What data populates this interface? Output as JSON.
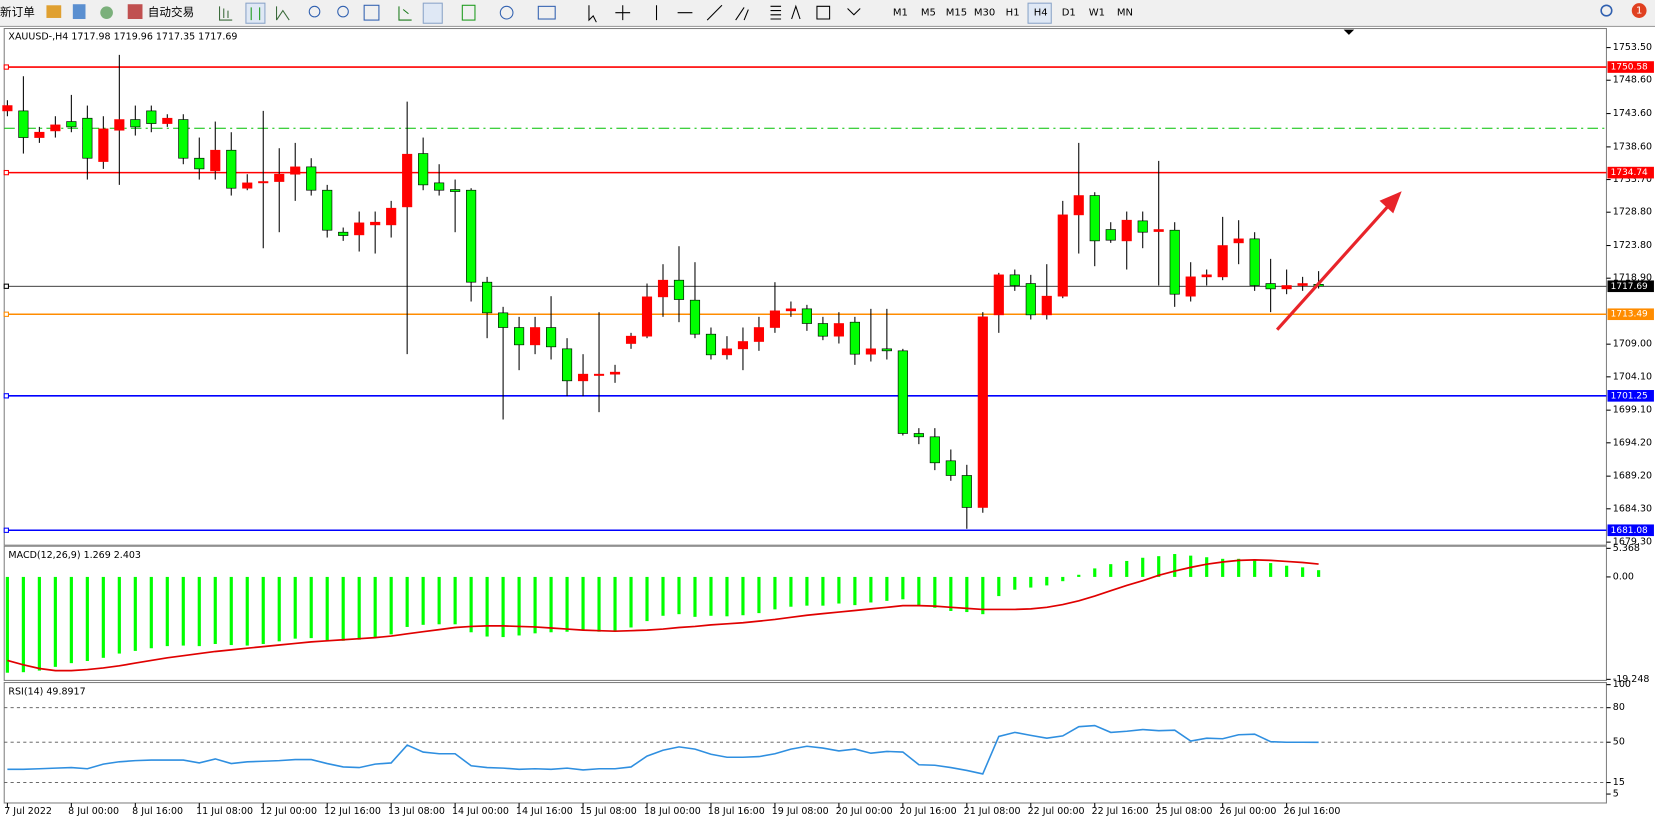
{
  "toolbar": {
    "new_order": "新订单",
    "auto_trading": "自动交易",
    "timeframes": [
      "M1",
      "M5",
      "M15",
      "M30",
      "H1",
      "H4",
      "D1",
      "W1",
      "MN"
    ],
    "notifications": "1"
  },
  "chart_data": [
    {
      "type": "candlestick",
      "title": "XAUUSD-,H4 1717.98 1719.96 1717.35 1717.69",
      "up_color": "#ff0000",
      "down_color": "#00ff00",
      "wick_color": "#000000",
      "categories": [
        "7 Jul 2022",
        null,
        null,
        null,
        "8 Jul 00:00",
        null,
        null,
        null,
        "8 Jul 16:00",
        null,
        null,
        null,
        "11 Jul 08:00",
        null,
        null,
        null,
        "12 Jul 00:00",
        null,
        null,
        null,
        "12 Jul 16:00",
        null,
        null,
        null,
        "13 Jul 08:00",
        null,
        null,
        null,
        "14 Jul 00:00",
        null,
        null,
        null,
        "14 Jul 16:00",
        null,
        null,
        null,
        "15 Jul 08:00",
        null,
        null,
        null,
        "18 Jul 00:00",
        null,
        null,
        null,
        "18 Jul 16:00",
        null,
        null,
        null,
        "19 Jul 08:00",
        null,
        null,
        null,
        "20 Jul 00:00",
        null,
        null,
        null,
        "20 Jul 16:00",
        null,
        null,
        null,
        "21 Jul 08:00",
        null,
        null,
        null,
        "22 Jul 00:00",
        null,
        null,
        null,
        "22 Jul 16:00",
        null,
        null,
        null,
        "25 Jul 08:00",
        null,
        null,
        null,
        "26 Jul 00:00",
        null,
        null,
        null,
        "26 Jul 16:00",
        null,
        null
      ],
      "open": [
        1744.0,
        1744.0,
        1740.0,
        1741.0,
        1742.4,
        1742.9,
        1736.4,
        1741.1,
        1742.7,
        1744.0,
        1742.1,
        1742.7,
        1736.9,
        1735.0,
        1738.1,
        1732.4,
        1733.2,
        1733.4,
        1734.5,
        1735.6,
        1732.1,
        1725.8,
        1725.4,
        1726.9,
        1726.9,
        1729.6,
        1737.6,
        1733.2,
        1732.2,
        1732.1,
        1718.3,
        1713.7,
        1711.5,
        1708.9,
        1711.5,
        1708.3,
        1703.5,
        1704.3,
        1704.5,
        1709.1,
        1710.2,
        1716.1,
        1718.6,
        1715.6,
        1710.5,
        1707.4,
        1708.3,
        1709.4,
        1711.5,
        1714.0,
        1714.3,
        1712.1,
        1710.2,
        1712.3,
        1707.5,
        1708.3,
        1708.0,
        1695.6,
        1695.1,
        1691.5,
        1689.3,
        1684.5,
        1713.4,
        1719.4,
        1718.1,
        1713.4,
        1716.2,
        1728.4,
        1731.3,
        1726.2,
        1724.5,
        1727.5,
        1725.9,
        1726.1,
        1716.2,
        1719.1,
        1719.1,
        1724.2,
        1724.8,
        1718.1,
        1717.3,
        1717.8,
        1717.98
      ],
      "high": [
        1745.6,
        1749.2,
        1741.6,
        1743.2,
        1746.4,
        1744.8,
        1743.2,
        1752.4,
        1744.8,
        1744.8,
        1743.5,
        1743.5,
        1740.0,
        1742.4,
        1740.8,
        1734.5,
        1744.0,
        1738.4,
        1739.2,
        1736.9,
        1732.9,
        1726.5,
        1728.9,
        1728.9,
        1730.5,
        1745.4,
        1740.0,
        1736.0,
        1733.7,
        1732.4,
        1719.1,
        1714.6,
        1713.1,
        1713.1,
        1716.2,
        1709.9,
        1707.5,
        1713.8,
        1705.9,
        1710.7,
        1718.1,
        1721.0,
        1723.7,
        1721.3,
        1711.5,
        1710.2,
        1711.5,
        1713.1,
        1718.3,
        1715.4,
        1714.9,
        1713.1,
        1713.8,
        1713.1,
        1714.3,
        1714.3,
        1708.3,
        1696.4,
        1696.4,
        1693.2,
        1690.9,
        1713.8,
        1719.7,
        1720.2,
        1719.4,
        1721.0,
        1730.5,
        1739.2,
        1731.8,
        1727.3,
        1728.9,
        1728.9,
        1736.5,
        1727.3,
        1721.3,
        1720.2,
        1728.1,
        1727.6,
        1725.8,
        1721.8,
        1720.2,
        1719.1,
        1719.96
      ],
      "low": [
        1743.2,
        1737.6,
        1739.2,
        1740.0,
        1740.8,
        1733.7,
        1735.3,
        1732.9,
        1740.3,
        1740.8,
        1741.6,
        1736.0,
        1733.7,
        1733.7,
        1731.3,
        1732.1,
        1723.4,
        1725.8,
        1730.5,
        1731.3,
        1725.0,
        1724.5,
        1722.9,
        1722.6,
        1725.0,
        1707.5,
        1732.1,
        1731.3,
        1725.8,
        1715.4,
        1709.9,
        1697.7,
        1705.1,
        1707.5,
        1706.7,
        1701.2,
        1701.2,
        1698.8,
        1703.2,
        1708.3,
        1709.9,
        1713.1,
        1712.3,
        1709.9,
        1706.7,
        1706.7,
        1705.1,
        1708.0,
        1710.7,
        1713.1,
        1711.0,
        1709.6,
        1709.1,
        1705.9,
        1706.4,
        1706.7,
        1695.3,
        1694.0,
        1690.1,
        1688.5,
        1681.3,
        1683.7,
        1710.7,
        1717.0,
        1712.7,
        1712.7,
        1715.9,
        1722.6,
        1720.7,
        1724.2,
        1720.2,
        1723.4,
        1717.8,
        1714.6,
        1715.4,
        1717.8,
        1718.6,
        1721.0,
        1717.0,
        1713.8,
        1716.5,
        1717.0,
        1717.35
      ],
      "close": [
        1744.8,
        1740.0,
        1740.8,
        1741.9,
        1741.6,
        1736.9,
        1741.3,
        1742.7,
        1741.6,
        1742.1,
        1742.9,
        1736.9,
        1735.3,
        1738.1,
        1732.4,
        1733.2,
        1733.4,
        1734.5,
        1735.6,
        1732.1,
        1726.1,
        1725.3,
        1727.2,
        1727.3,
        1729.4,
        1737.5,
        1732.9,
        1732.1,
        1731.9,
        1718.3,
        1713.7,
        1711.5,
        1708.9,
        1711.5,
        1708.6,
        1703.5,
        1704.5,
        1704.5,
        1704.8,
        1710.2,
        1716.1,
        1718.6,
        1715.7,
        1710.5,
        1707.4,
        1708.3,
        1709.4,
        1711.5,
        1714.0,
        1714.3,
        1712.1,
        1710.2,
        1712.1,
        1707.5,
        1708.3,
        1708.0,
        1695.6,
        1695.1,
        1691.2,
        1689.3,
        1684.5,
        1713.1,
        1719.4,
        1717.8,
        1713.4,
        1716.2,
        1728.4,
        1731.3,
        1724.5,
        1724.6,
        1727.6,
        1725.8,
        1726.2,
        1716.5,
        1719.1,
        1719.4,
        1723.8,
        1724.8,
        1717.8,
        1717.3,
        1717.8,
        1718.1,
        1717.69
      ],
      "ylim": [
        1679.0,
        1756.2
      ],
      "yticks": [
        {
          "value": 1753.5,
          "label": "1753.50"
        },
        {
          "value": 1748.6,
          "label": "1748.60"
        },
        {
          "value": 1743.6,
          "label": "1743.60"
        },
        {
          "value": 1738.6,
          "label": "1738.60"
        },
        {
          "value": 1733.7,
          "label": "1733.70"
        },
        {
          "value": 1728.8,
          "label": "1728.80"
        },
        {
          "value": 1723.8,
          "label": "1723.80"
        },
        {
          "value": 1718.9,
          "label": "1718.90"
        },
        {
          "value": 1709.0,
          "label": "1709.00"
        },
        {
          "value": 1704.1,
          "label": "1704.10"
        },
        {
          "value": 1699.1,
          "label": "1699.10"
        },
        {
          "value": 1694.2,
          "label": "1694.20"
        },
        {
          "value": 1689.2,
          "label": "1689.20"
        },
        {
          "value": 1684.3,
          "label": "1684.30"
        },
        {
          "value": 1679.3,
          "label": "1679.30"
        }
      ],
      "levels": [
        {
          "value": 1750.58,
          "color": "#ff0000"
        },
        {
          "value": 1734.74,
          "color": "#ff0000"
        },
        {
          "value": 1717.69,
          "color": "#000000"
        },
        {
          "value": 1713.49,
          "color": "#ff8c00"
        },
        {
          "value": 1701.25,
          "color": "#0000ff"
        },
        {
          "value": 1681.08,
          "color": "#0000ff"
        }
      ],
      "signal_line": {
        "value": 1741.4,
        "color": "#00c000",
        "style": "dashdot"
      }
    },
    {
      "type": "macd",
      "title": "MACD(12,26,9) 1.269 2.403",
      "histogram_color": "#00ff00",
      "signal_color": "#e00000",
      "histogram": [
        -18.0,
        -17.9,
        -17.6,
        -16.9,
        -16.2,
        -15.8,
        -15.2,
        -14.4,
        -13.9,
        -13.4,
        -13.0,
        -12.9,
        -13.0,
        -12.6,
        -12.8,
        -12.9,
        -12.6,
        -12.1,
        -11.6,
        -11.5,
        -11.9,
        -12.0,
        -11.8,
        -11.4,
        -10.8,
        -9.4,
        -9.0,
        -8.9,
        -8.9,
        -10.4,
        -11.2,
        -11.3,
        -11.0,
        -10.6,
        -10.4,
        -10.3,
        -10.0,
        -10.3,
        -10.1,
        -9.5,
        -8.3,
        -7.3,
        -7.0,
        -7.5,
        -7.3,
        -7.4,
        -7.2,
        -6.8,
        -6.1,
        -5.6,
        -5.4,
        -5.4,
        -5.0,
        -5.3,
        -4.8,
        -4.5,
        -4.2,
        -5.3,
        -5.8,
        -6.4,
        -6.6,
        -7.0,
        -3.6,
        -2.4,
        -2.0,
        -1.6,
        -0.8,
        0.4,
        1.6,
        2.4,
        3.0,
        3.6,
        3.9,
        4.3,
        4.0,
        3.7,
        3.4,
        3.4,
        3.3,
        2.6,
        2.1,
        1.8,
        1.269
      ],
      "signal": [
        -15.7,
        -16.5,
        -17.2,
        -17.6,
        -17.6,
        -17.4,
        -17.1,
        -16.7,
        -16.2,
        -15.7,
        -15.2,
        -14.8,
        -14.4,
        -14.0,
        -13.7,
        -13.4,
        -13.1,
        -12.8,
        -12.5,
        -12.2,
        -12.0,
        -11.8,
        -11.6,
        -11.4,
        -11.1,
        -10.7,
        -10.3,
        -9.9,
        -9.5,
        -9.3,
        -9.2,
        -9.2,
        -9.3,
        -9.4,
        -9.6,
        -9.8,
        -10.0,
        -10.1,
        -10.2,
        -10.1,
        -10.0,
        -9.8,
        -9.5,
        -9.3,
        -9.0,
        -8.8,
        -8.6,
        -8.3,
        -8.0,
        -7.6,
        -7.2,
        -6.9,
        -6.6,
        -6.3,
        -6.0,
        -5.7,
        -5.4,
        -5.4,
        -5.5,
        -5.7,
        -5.9,
        -6.1,
        -6.1,
        -6.1,
        -6.0,
        -5.7,
        -5.2,
        -4.5,
        -3.6,
        -2.6,
        -1.6,
        -0.7,
        0.3,
        1.1,
        1.8,
        2.4,
        2.8,
        3.1,
        3.2,
        3.1,
        2.9,
        2.7,
        2.403
      ],
      "ylim": [
        -19.248,
        5.368
      ],
      "yticks": [
        5.368,
        {
          "value": 0,
          "label": "0.00"
        },
        -19.248
      ]
    },
    {
      "type": "rsi",
      "title": "RSI(14) 49.8917",
      "color": "#2f8fe0",
      "values": [
        26.5,
        26.5,
        27.0,
        27.5,
        28.0,
        27.0,
        31.0,
        33.0,
        34.0,
        34.5,
        34.5,
        34.5,
        32.0,
        35.5,
        31.5,
        33.0,
        33.5,
        34.0,
        35.0,
        35.0,
        31.5,
        28.5,
        28.0,
        31.0,
        32.0,
        47.5,
        41.5,
        40.0,
        40.0,
        29.5,
        28.0,
        27.5,
        26.5,
        27.0,
        26.5,
        27.5,
        26.0,
        27.0,
        27.0,
        28.5,
        38.0,
        43.0,
        46.0,
        44.0,
        39.5,
        37.0,
        37.0,
        37.5,
        40.0,
        44.0,
        46.5,
        45.0,
        42.5,
        44.0,
        40.5,
        42.0,
        41.5,
        30.5,
        30.0,
        28.0,
        25.5,
        22.5,
        55.0,
        58.5,
        56.0,
        53.5,
        55.5,
        63.5,
        64.5,
        58.5,
        59.5,
        61.0,
        60.0,
        60.5,
        51.0,
        53.5,
        53.0,
        56.5,
        57.0,
        50.5,
        50.0,
        50.0,
        49.8917
      ],
      "ylim": [
        0,
        100
      ],
      "yticks": [
        100,
        80,
        50,
        15,
        5
      ],
      "levels": [
        80,
        50,
        15
      ]
    }
  ]
}
